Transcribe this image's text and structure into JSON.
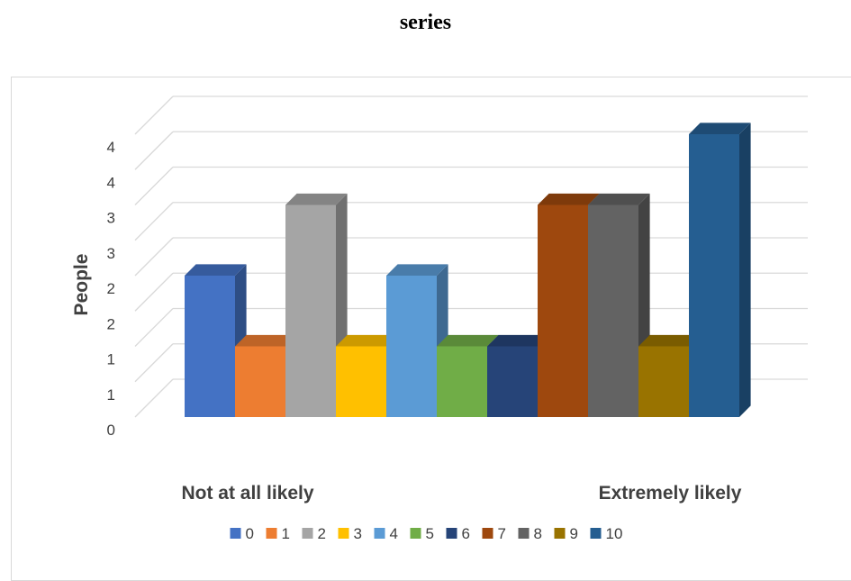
{
  "page_title": "series",
  "chart_data": {
    "type": "bar",
    "ylabel": "People",
    "y_tick_labels": [
      "0",
      "1",
      "1",
      "2",
      "2",
      "3",
      "3",
      "4",
      "4"
    ],
    "ylim": [
      0,
      4
    ],
    "category_labels": [
      "Not at all likely",
      "Extremely likely"
    ],
    "series": [
      {
        "name": "0",
        "value": 2,
        "color": "#4472C4"
      },
      {
        "name": "1",
        "value": 1,
        "color": "#ED7D31"
      },
      {
        "name": "2",
        "value": 3,
        "color": "#A5A5A5"
      },
      {
        "name": "3",
        "value": 1,
        "color": "#FFC000"
      },
      {
        "name": "4",
        "value": 2,
        "color": "#5B9BD5"
      },
      {
        "name": "5",
        "value": 1,
        "color": "#70AD47"
      },
      {
        "name": "6",
        "value": 1,
        "color": "#264478"
      },
      {
        "name": "7",
        "value": 3,
        "color": "#9E480E"
      },
      {
        "name": "8",
        "value": 3,
        "color": "#636363"
      },
      {
        "name": "9",
        "value": 1,
        "color": "#997300"
      },
      {
        "name": "10",
        "value": 4,
        "color": "#255E91"
      }
    ],
    "legend_position": "bottom",
    "grid": true,
    "style": "3d-clustered-column"
  }
}
